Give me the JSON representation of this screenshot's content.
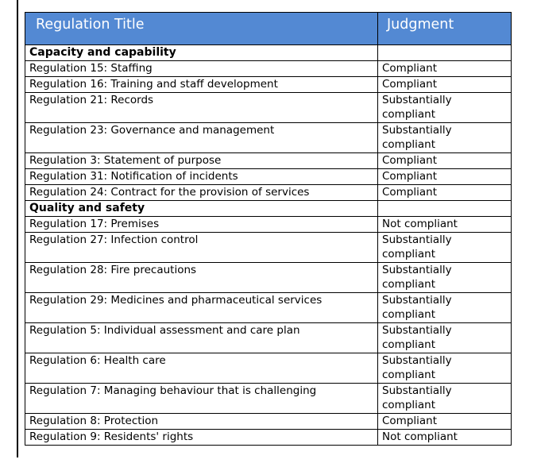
{
  "table": {
    "header": {
      "col1": "Regulation Title",
      "col2": "Judgment"
    },
    "rows": [
      {
        "kind": "section",
        "title": "Capacity and capability",
        "judgment": ""
      },
      {
        "kind": "regulation",
        "title": "Regulation 15: Staffing",
        "judgment": "Compliant"
      },
      {
        "kind": "regulation",
        "title": "Regulation 16: Training and staff development",
        "judgment": "Compliant"
      },
      {
        "kind": "regulation",
        "title": "Regulation 21: Records",
        "judgment": "Substantially compliant"
      },
      {
        "kind": "regulation",
        "title": "Regulation 23: Governance and management",
        "judgment": "Substantially compliant"
      },
      {
        "kind": "regulation",
        "title": "Regulation 3: Statement of purpose",
        "judgment": "Compliant"
      },
      {
        "kind": "regulation",
        "title": "Regulation 31: Notification of incidents",
        "judgment": "Compliant"
      },
      {
        "kind": "regulation",
        "title": "Regulation 24: Contract for the provision of services",
        "judgment": "Compliant"
      },
      {
        "kind": "section",
        "title": "Quality and safety",
        "judgment": ""
      },
      {
        "kind": "regulation",
        "title": "Regulation 17: Premises",
        "judgment": "Not compliant"
      },
      {
        "kind": "regulation",
        "title": "Regulation 27: Infection control",
        "judgment": "Substantially compliant"
      },
      {
        "kind": "regulation",
        "title": "Regulation 28: Fire precautions",
        "judgment": "Substantially compliant"
      },
      {
        "kind": "regulation",
        "title": "Regulation 29: Medicines and pharmaceutical services",
        "judgment": "Substantially compliant"
      },
      {
        "kind": "regulation",
        "title": "Regulation 5: Individual assessment and care plan",
        "judgment": "Substantially compliant"
      },
      {
        "kind": "regulation",
        "title": "Regulation 6: Health care",
        "judgment": "Substantially compliant"
      },
      {
        "kind": "regulation",
        "title": "Regulation 7: Managing behaviour that is challenging",
        "judgment": "Substantially compliant"
      },
      {
        "kind": "regulation",
        "title": "Regulation 8: Protection",
        "judgment": "Compliant"
      },
      {
        "kind": "regulation",
        "title": "Regulation 9: Residents' rights",
        "judgment": "Not compliant"
      }
    ]
  },
  "colors": {
    "header_bg": "#5389d3",
    "header_text": "#ffffff",
    "border": "#000000",
    "body_text": "#000000"
  }
}
